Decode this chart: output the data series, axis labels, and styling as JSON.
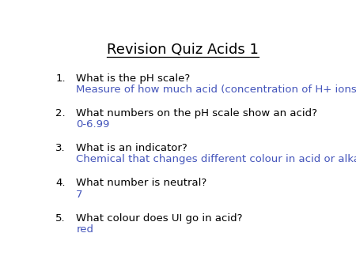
{
  "title": "Revision Quiz Acids 1",
  "background_color": "#ffffff",
  "title_color": "#000000",
  "title_fontsize": 13,
  "question_color": "#000000",
  "answer_color": "#4455bb",
  "question_fontsize": 9.5,
  "answer_fontsize": 9.5,
  "items": [
    {
      "number": "1.",
      "question": "What is the pH scale?",
      "answer": "Measure of how much acid (concentration of H+ ions)"
    },
    {
      "number": "2.",
      "question": "What numbers on the pH scale show an acid?",
      "answer": "0-6.99"
    },
    {
      "number": "3.",
      "question": "What is an indicator?",
      "answer": "Chemical that changes different colour in acid or alkali"
    },
    {
      "number": "4.",
      "question": "What number is neutral?",
      "answer": "7"
    },
    {
      "number": "5.",
      "question": "What colour does UI go in acid?",
      "answer": "red"
    }
  ]
}
